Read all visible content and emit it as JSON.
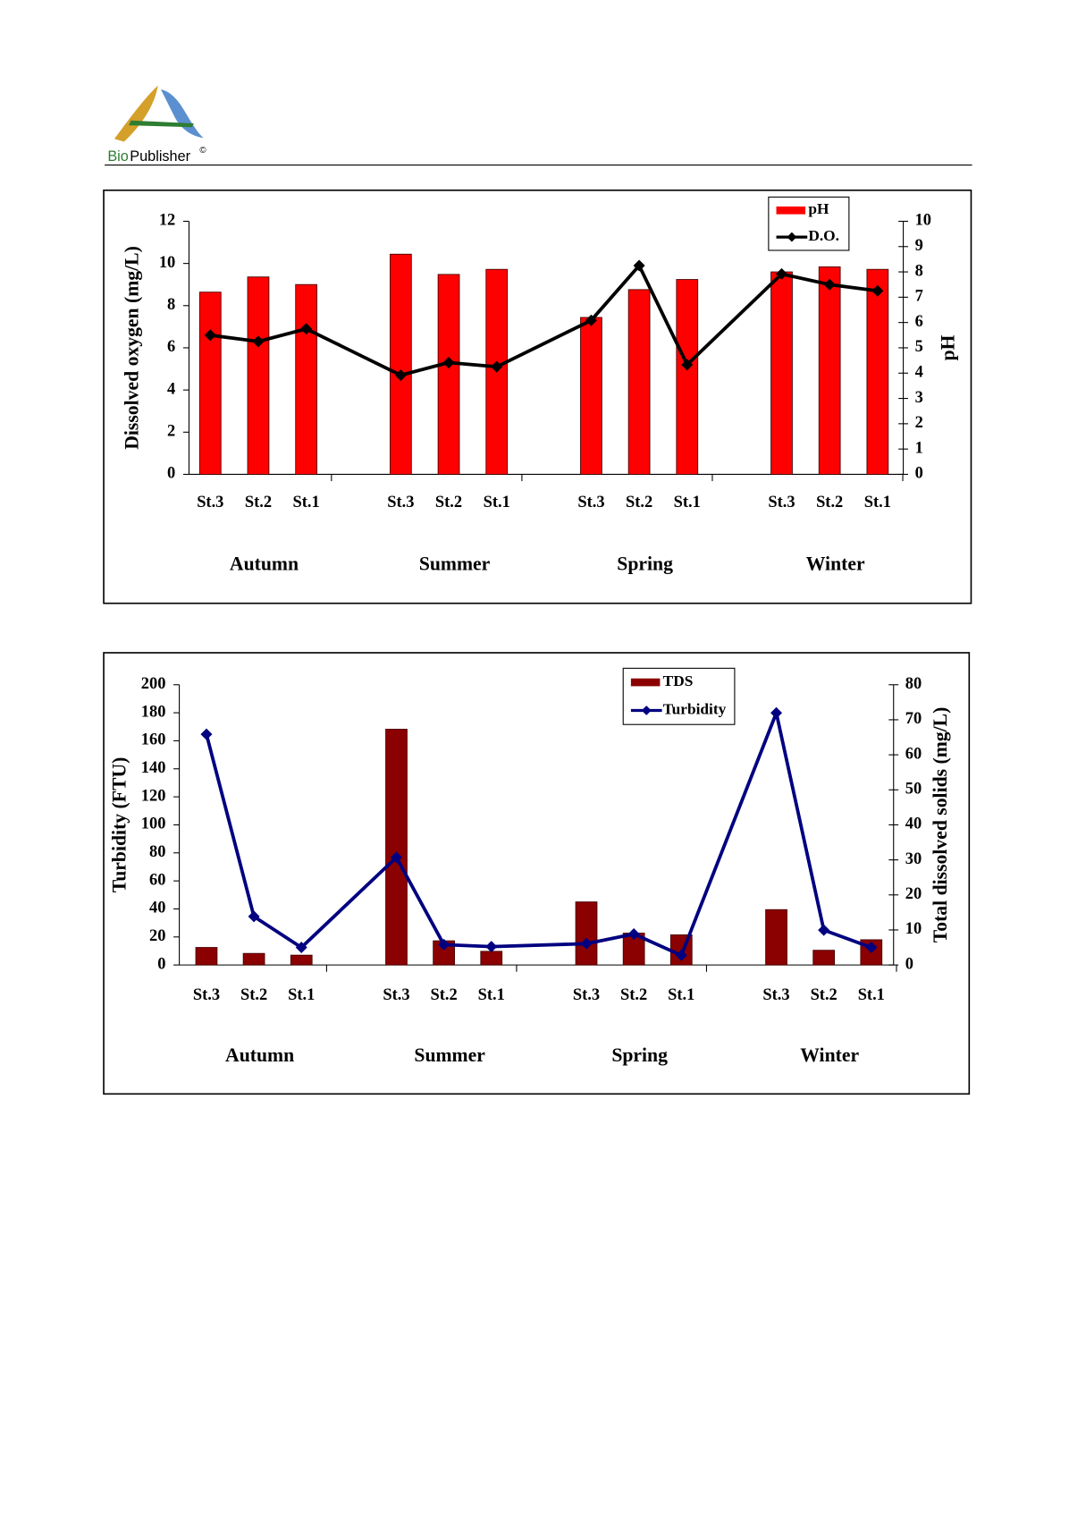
{
  "header": {
    "brand_prefix": "Bio",
    "brand_suffix": "Publisher",
    "brand_mark": "©"
  },
  "chart_data": [
    {
      "type": "bar",
      "categories": [
        "St.3",
        "St.2",
        "St.1",
        "St.3",
        "St.2",
        "St.1",
        "St.3",
        "St.2",
        "St.1",
        "St.3",
        "St.2",
        "St.1"
      ],
      "groups": [
        "Autumn",
        "Summer",
        "Spring",
        "Winter"
      ],
      "ylabel": "Dissolved oxygen (mg/L)",
      "y2label": "pH",
      "ylim": [
        0,
        12
      ],
      "yticks": [
        0,
        2,
        4,
        6,
        8,
        10,
        12
      ],
      "y2lim": [
        0,
        10
      ],
      "y2ticks": [
        0,
        1,
        2,
        3,
        4,
        5,
        6,
        7,
        8,
        9,
        10
      ],
      "legend": "top-right",
      "series": [
        {
          "name": "pH",
          "type": "bar",
          "axis": "y2",
          "color": "#ff0000",
          "values": [
            7.2,
            7.8,
            7.5,
            8.7,
            7.9,
            8.1,
            6.2,
            7.3,
            7.7,
            8.0,
            8.2,
            8.1
          ]
        },
        {
          "name": "D.O.",
          "type": "line",
          "color": "#000000",
          "values": [
            6.6,
            6.3,
            6.9,
            4.7,
            5.3,
            5.1,
            7.3,
            9.9,
            5.2,
            9.5,
            9.0,
            8.7
          ]
        }
      ]
    },
    {
      "type": "bar",
      "categories": [
        "St.3",
        "St.2",
        "St.1",
        "St.3",
        "St.2",
        "St.1",
        "St.3",
        "St.2",
        "St.1",
        "St.3",
        "St.2",
        "St.1"
      ],
      "groups": [
        "Autumn",
        "Summer",
        "Spring",
        "Winter"
      ],
      "ylabel": "Turbidity (FTU)",
      "y2label": "Total dissolved solids (mg/L)",
      "ylim": [
        0,
        200
      ],
      "yticks": [
        0,
        20,
        40,
        60,
        80,
        100,
        120,
        140,
        160,
        180,
        200
      ],
      "y2lim": [
        0,
        80
      ],
      "y2ticks": [
        0,
        10,
        20,
        30,
        40,
        50,
        60,
        70,
        80
      ],
      "legend": "top-right",
      "series": [
        {
          "name": "TDS",
          "type": "bar",
          "axis": "y2",
          "color": "#8b0000",
          "values": [
            5.0,
            3.3,
            2.8,
            67.3,
            6.9,
            3.9,
            18.0,
            9.1,
            8.6,
            15.8,
            4.2,
            7.2
          ]
        },
        {
          "name": "Turbidity",
          "type": "line",
          "color": "#000080",
          "values": [
            164.7,
            34.6,
            12.5,
            76.8,
            14.5,
            13.1,
            15.2,
            22.1,
            6.9,
            179.9,
            24.9,
            12.5
          ]
        }
      ]
    }
  ]
}
